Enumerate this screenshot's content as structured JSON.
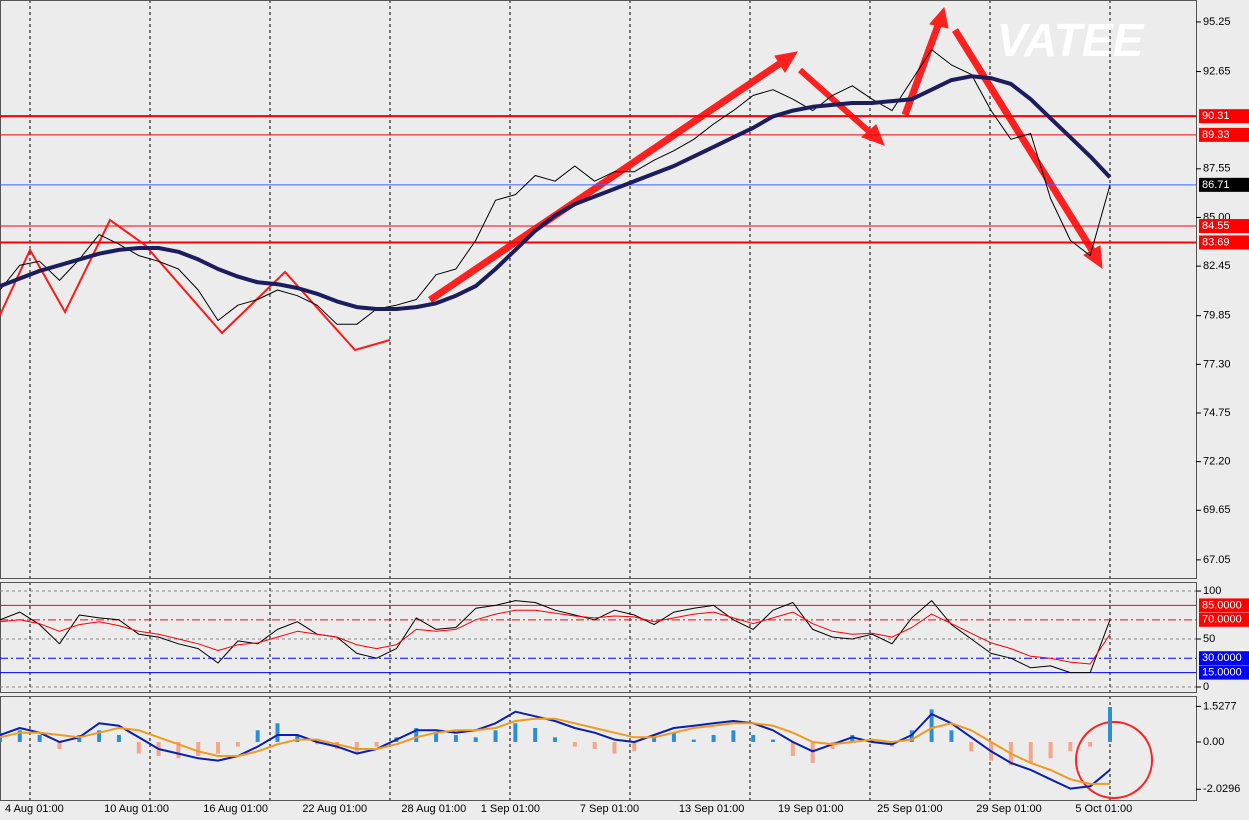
{
  "chart_data": [
    {
      "type": "line",
      "watermark": "VATEE",
      "categories": [
        "4 Aug 01:00",
        null,
        null,
        null,
        null,
        "10 Aug 01:00",
        null,
        null,
        null,
        null,
        "16 Aug 01:00",
        null,
        null,
        null,
        null,
        "22 Aug 01:00",
        null,
        null,
        null,
        null,
        "28 Aug 01:00",
        null,
        null,
        null,
        "1 Sep 01:00",
        null,
        null,
        null,
        null,
        "7 Sep 01:00",
        null,
        null,
        null,
        null,
        "13 Sep 01:00",
        null,
        null,
        null,
        null,
        "19 Sep 01:00",
        null,
        null,
        null,
        null,
        "25 Sep 01:00",
        null,
        null,
        null,
        null,
        "29 Sep 01:00",
        null,
        null,
        null,
        null,
        "5 Oct 01:00",
        null,
        null
      ],
      "series": [
        {
          "name": "Price",
          "color": "#000000",
          "width": 1,
          "values": [
            81.2,
            82.5,
            82.7,
            81.7,
            82.8,
            84.1,
            83.6,
            83.0,
            82.7,
            82.3,
            81.2,
            79.6,
            80.4,
            80.7,
            81.2,
            80.9,
            80.4,
            79.4,
            79.4,
            80.2,
            80.4,
            80.7,
            82.0,
            82.3,
            83.8,
            85.9,
            86.2,
            87.2,
            86.9,
            87.7,
            86.9,
            87.4,
            87.4,
            88.0,
            88.5,
            89.1,
            89.9,
            90.6,
            91.4,
            91.7,
            91.2,
            90.6,
            91.4,
            91.9,
            91.2,
            90.6,
            92.2,
            93.8,
            93.0,
            92.5,
            90.6,
            89.1,
            89.4,
            86.0,
            83.8,
            83.0,
            86.7
          ]
        },
        {
          "name": "MA",
          "color": "#1c1c5e",
          "width": 4,
          "values": [
            81.4,
            81.8,
            82.2,
            82.5,
            82.8,
            83.1,
            83.3,
            83.4,
            83.4,
            83.2,
            82.8,
            82.3,
            81.9,
            81.6,
            81.5,
            81.3,
            81.0,
            80.6,
            80.3,
            80.2,
            80.2,
            80.3,
            80.5,
            80.9,
            81.4,
            82.3,
            83.3,
            84.3,
            85.1,
            85.7,
            86.1,
            86.5,
            86.9,
            87.3,
            87.7,
            88.2,
            88.7,
            89.2,
            89.7,
            90.3,
            90.6,
            90.8,
            90.9,
            91.0,
            91.0,
            91.1,
            91.2,
            91.7,
            92.2,
            92.4,
            92.3,
            92.0,
            91.2,
            90.2,
            89.2,
            88.2,
            87.1
          ]
        }
      ],
      "ylim": [
        66.1,
        96.4
      ],
      "yticks": [
        95.25,
        92.65,
        87.55,
        {
          "value": 85,
          "label": "85.00"
        },
        82.45,
        79.85,
        {
          "value": 77.3,
          "label": "77.30"
        },
        74.75,
        {
          "value": 72.2,
          "label": "72.20"
        },
        69.65,
        67.05
      ],
      "hlines": [
        {
          "value": 90.31,
          "color": "#ff0000",
          "box_color": "#ff0000",
          "width": 2
        },
        {
          "value": 89.33,
          "color": "#ff0000",
          "box_color": "#ff0000",
          "width": 1
        },
        {
          "value": 86.71,
          "color": "#4060ff",
          "box_color": "#000000",
          "width": 1
        },
        {
          "value": 84.55,
          "color": "#ff0000",
          "box_color": "#ff0000",
          "width": 1
        },
        {
          "value": 83.69,
          "color": "#ff0000",
          "box_color": "#ff0000",
          "width": 2
        }
      ]
    },
    {
      "type": "line",
      "series": [
        {
          "name": "Main",
          "color": "#000000",
          "width": 1,
          "values": [
            70,
            78,
            65,
            45,
            75,
            72,
            70,
            55,
            52,
            45,
            40,
            25,
            48,
            45,
            60,
            68,
            55,
            52,
            35,
            30,
            40,
            72,
            60,
            62,
            82,
            85,
            90,
            88,
            80,
            75,
            70,
            80,
            75,
            65,
            78,
            82,
            85,
            70,
            60,
            80,
            88,
            60,
            52,
            50,
            55,
            45,
            72,
            90,
            65,
            50,
            35,
            30,
            20,
            22,
            15,
            15,
            70
          ]
        },
        {
          "name": "Signal",
          "color": "#ff0000",
          "width": 1,
          "values": [
            68,
            70,
            66,
            58,
            65,
            68,
            64,
            58,
            55,
            50,
            45,
            38,
            44,
            46,
            52,
            58,
            55,
            52,
            44,
            40,
            44,
            60,
            58,
            60,
            70,
            76,
            80,
            80,
            77,
            74,
            72,
            74,
            73,
            68,
            72,
            76,
            78,
            72,
            66,
            72,
            78,
            66,
            58,
            55,
            56,
            52,
            62,
            76,
            66,
            56,
            46,
            40,
            32,
            30,
            26,
            24,
            55
          ]
        }
      ],
      "ylim": [
        -5.2,
        109.4
      ],
      "yticks": [
        100,
        50,
        0
      ],
      "hlines": [
        {
          "value": 85,
          "label": "85.0000",
          "color": "#ff0000",
          "box_color": "#ff0000",
          "dash": "none"
        },
        {
          "value": 70,
          "label": "70.0000",
          "color": "#ff0000",
          "box_color": "#ff0000",
          "dash": "8 3 2 3"
        },
        {
          "value": 30,
          "label": "30.0000",
          "color": "#0000ff",
          "box_color": "#0000ff",
          "dash": "8 3 2 3"
        },
        {
          "value": 15,
          "label": "15.0000",
          "color": "#0000ff",
          "box_color": "#0000ff",
          "dash": "none"
        }
      ]
    },
    {
      "type": "bar",
      "values": [
        0.4,
        0.5,
        0.3,
        -0.3,
        0.3,
        0.5,
        0.3,
        -0.5,
        -0.6,
        -0.7,
        -0.6,
        -0.5,
        -0.2,
        0.5,
        0.8,
        0.3,
        -0.1,
        -0.3,
        -0.5,
        -0.2,
        0.2,
        0.6,
        0.4,
        0.3,
        0.2,
        0.5,
        0.8,
        0.6,
        0.2,
        -0.2,
        -0.3,
        -0.5,
        -0.4,
        0.2,
        0.4,
        0.1,
        0.3,
        0.5,
        0.3,
        0.1,
        -0.6,
        -0.9,
        -0.3,
        0.3,
        0.1,
        -0.2,
        0.5,
        1.4,
        0.5,
        -0.4,
        -0.8,
        -1.0,
        -0.9,
        -0.7,
        -0.4,
        -0.2,
        1.5
      ],
      "pos_color": "#2b8fd6",
      "neg_color": "#f4a58a",
      "series": [
        {
          "name": "MACD",
          "color": "#0a1fb0",
          "width": 2,
          "values": [
            0.3,
            0.6,
            0.4,
            0.0,
            0.2,
            0.8,
            0.7,
            0.2,
            -0.3,
            -0.5,
            -0.7,
            -0.8,
            -0.6,
            -0.2,
            0.3,
            0.3,
            0.0,
            -0.2,
            -0.5,
            -0.3,
            0.1,
            0.5,
            0.5,
            0.4,
            0.5,
            0.8,
            1.3,
            1.1,
            0.9,
            0.6,
            0.4,
            0.1,
            0.0,
            0.3,
            0.6,
            0.7,
            0.8,
            0.9,
            0.8,
            0.5,
            0.0,
            -0.4,
            -0.1,
            0.2,
            0.0,
            -0.1,
            0.3,
            1.2,
            0.8,
            0.2,
            -0.4,
            -0.9,
            -1.2,
            -1.6,
            -2.0,
            -1.9,
            -1.2
          ]
        },
        {
          "name": "Signal",
          "color": "#f09a20",
          "width": 2,
          "values": [
            0.2,
            0.4,
            0.4,
            0.3,
            0.2,
            0.4,
            0.6,
            0.5,
            0.2,
            -0.1,
            -0.4,
            -0.6,
            -0.6,
            -0.4,
            -0.1,
            0.1,
            0.1,
            -0.1,
            -0.3,
            -0.3,
            -0.1,
            0.2,
            0.4,
            0.5,
            0.5,
            0.6,
            0.9,
            1.0,
            1.0,
            0.8,
            0.6,
            0.4,
            0.2,
            0.2,
            0.4,
            0.6,
            0.7,
            0.8,
            0.8,
            0.7,
            0.4,
            0.0,
            -0.1,
            0.0,
            0.1,
            0.0,
            0.1,
            0.6,
            0.8,
            0.5,
            0.0,
            -0.5,
            -0.9,
            -1.2,
            -1.6,
            -1.8,
            -1.8
          ]
        }
      ],
      "ylim": [
        -2.49,
        1.93
      ],
      "yticks": [
        1.5277,
        {
          "value": 0,
          "label": "0.00"
        },
        -2.0296
      ]
    }
  ]
}
